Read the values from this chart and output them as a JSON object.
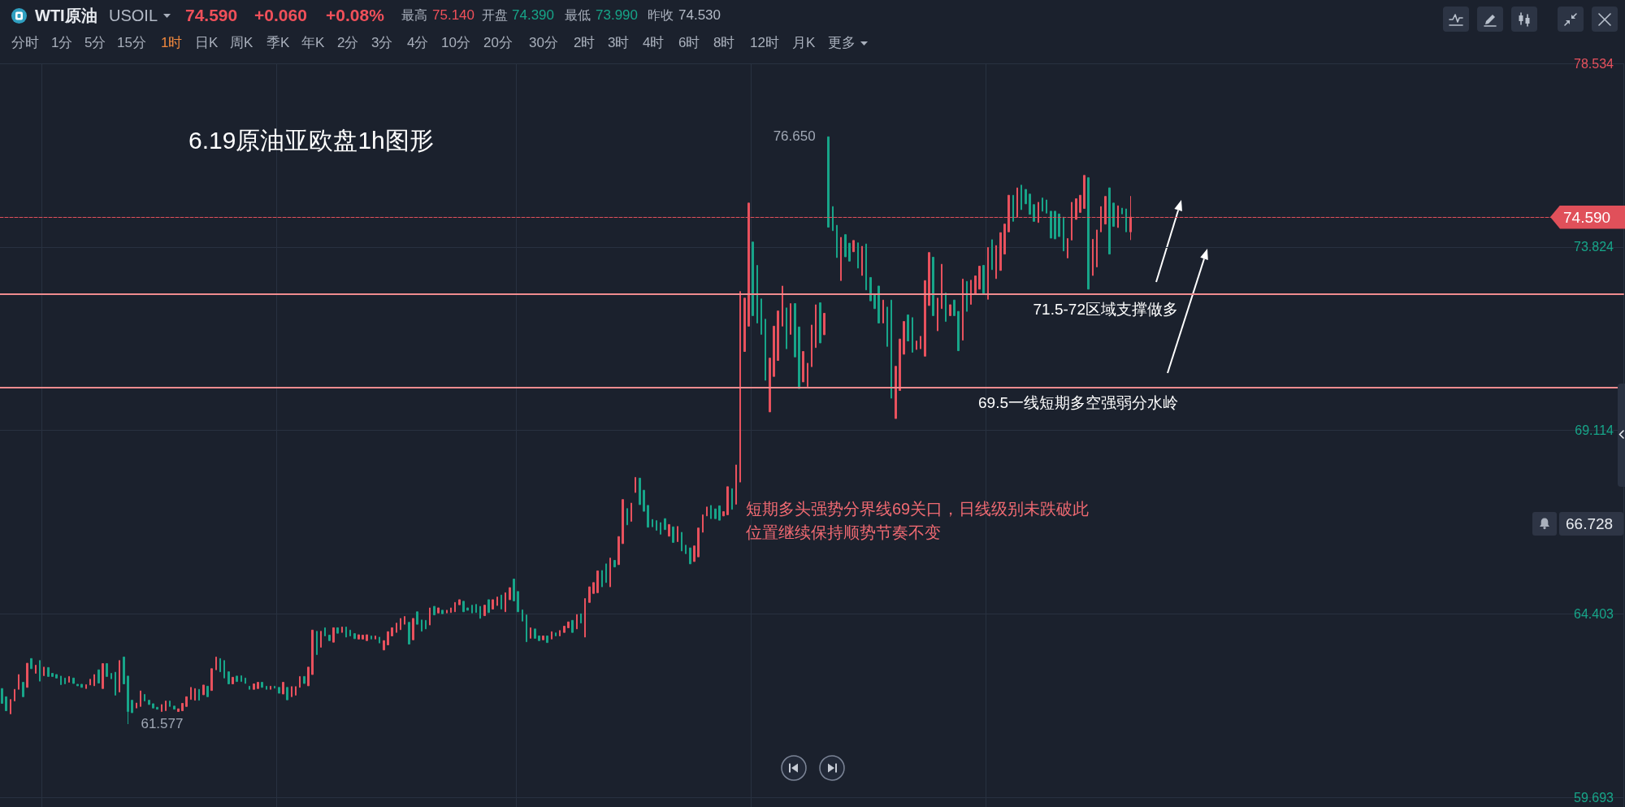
{
  "chart_data": {
    "type": "candlestick",
    "title": "6.19原油亚欧盘1h图形",
    "categories": [
      null,
      null,
      null,
      null,
      null,
      null,
      null,
      null,
      null,
      null,
      null,
      null,
      null,
      null,
      null,
      null,
      null,
      null,
      null,
      null,
      null,
      null,
      null,
      null,
      null,
      null,
      null,
      null,
      null,
      null,
      null,
      null,
      null,
      null,
      null,
      null,
      null,
      null,
      null,
      null,
      null,
      null,
      null,
      null,
      null,
      null,
      null,
      null,
      null,
      null,
      null,
      null,
      null,
      null,
      null,
      null,
      null,
      null,
      null,
      null,
      null,
      null,
      null,
      null,
      null,
      null,
      null,
      null,
      null,
      null,
      null,
      null,
      null,
      null,
      null,
      null,
      null,
      null,
      null,
      null,
      null,
      null,
      null,
      null,
      null,
      null,
      null,
      null,
      null,
      null,
      null,
      null,
      null,
      null,
      null,
      null,
      null,
      null,
      null,
      null,
      null,
      null,
      null,
      null,
      null,
      null,
      null,
      null,
      null,
      null,
      null,
      null,
      null,
      null,
      null,
      null,
      null,
      null,
      null,
      null,
      null,
      null,
      null,
      null,
      null,
      null,
      null,
      null,
      null,
      null,
      null,
      null,
      null,
      null,
      null,
      null,
      null,
      null,
      null,
      null,
      null,
      null,
      null,
      null,
      null,
      null,
      null,
      null,
      null,
      null,
      null,
      null,
      null,
      null,
      null,
      null,
      null,
      null,
      null,
      null,
      null,
      null,
      null,
      null,
      null,
      null,
      null,
      null,
      null,
      null,
      null,
      null,
      null,
      null,
      null,
      null,
      null,
      null,
      null,
      null,
      null,
      null,
      null,
      null,
      null,
      null,
      null,
      null,
      null,
      null,
      null,
      null,
      null,
      null,
      null,
      null,
      null,
      null,
      null,
      null,
      null,
      null,
      null,
      null,
      null,
      null,
      null,
      null,
      null,
      null,
      null,
      null,
      null,
      null,
      null,
      null,
      null,
      null,
      null,
      null,
      null,
      null,
      null,
      null,
      null,
      null,
      null,
      null,
      null,
      null,
      null,
      null,
      null,
      null,
      null,
      null,
      null,
      null,
      null,
      null,
      null,
      null,
      null,
      null,
      null,
      null,
      null,
      null,
      null,
      null,
      null,
      null,
      null,
      null,
      null,
      null,
      null,
      null,
      null,
      null,
      null,
      null,
      null,
      null,
      null,
      null,
      null,
      null,
      null,
      null,
      null,
      null,
      null,
      null,
      null,
      null,
      null,
      null,
      null,
      null,
      null,
      null,
      null,
      null,
      null,
      null,
      null,
      null,
      null,
      null,
      null,
      null,
      null,
      null,
      null,
      null,
      null,
      null,
      null,
      null,
      null,
      null,
      null,
      null,
      null,
      null,
      null,
      null,
      null,
      null,
      null,
      null,
      null,
      null,
      null,
      null,
      null,
      null,
      null,
      null,
      null,
      null,
      null,
      null,
      null,
      null,
      null,
      null,
      null,
      null,
      null,
      null,
      null,
      null,
      null,
      null,
      null,
      null,
      null,
      null,
      null,
      null,
      null,
      null,
      null,
      null,
      null,
      null,
      null,
      null,
      null,
      null,
      null,
      null,
      null,
      null,
      null,
      null,
      null,
      null,
      null,
      null,
      null,
      null,
      null,
      null,
      null,
      null,
      null,
      null,
      null,
      null,
      null,
      null,
      null,
      null,
      null,
      null,
      null,
      null,
      null,
      null,
      null,
      null,
      null,
      null,
      null
    ],
    "ohlc": [
      [
        62.49,
        62.49,
        62.11,
        62.11
      ],
      [
        62.28,
        62.28,
        61.92,
        61.92
      ],
      [
        61.84,
        62.21,
        61.84,
        62.21
      ],
      [
        62.17,
        62.47,
        62.17,
        62.47
      ],
      [
        62.47,
        62.85,
        62.47,
        62.85
      ],
      [
        62.65,
        62.65,
        62.28,
        62.28
      ],
      [
        62.52,
        63.14,
        62.52,
        63.14
      ],
      [
        63.26,
        63.26,
        63.0,
        63.0
      ],
      [
        62.88,
        63.09,
        62.88,
        63.09
      ],
      [
        63.21,
        63.21,
        62.68,
        62.68
      ],
      [
        62.82,
        63.04,
        62.82,
        63.04
      ],
      [
        63.03,
        63.03,
        62.8,
        62.8
      ],
      [
        62.88,
        62.88,
        62.8,
        62.8
      ],
      [
        62.85,
        62.85,
        62.76,
        62.76
      ],
      [
        62.81,
        62.81,
        62.59,
        62.59
      ],
      [
        62.76,
        62.76,
        62.61,
        62.61
      ],
      [
        62.65,
        62.8,
        62.65,
        62.8
      ],
      [
        62.76,
        62.76,
        62.62,
        62.62
      ],
      [
        62.6,
        62.6,
        62.56,
        62.56
      ],
      [
        62.6,
        62.6,
        62.52,
        62.52
      ],
      [
        62.49,
        62.59,
        62.49,
        62.59
      ],
      [
        62.58,
        62.73,
        62.58,
        62.73
      ],
      [
        62.56,
        62.85,
        62.56,
        62.85
      ],
      [
        62.97,
        62.97,
        62.63,
        62.63
      ],
      [
        62.49,
        63.13,
        62.49,
        63.13
      ],
      [
        63.13,
        63.13,
        62.8,
        62.8
      ],
      [
        62.88,
        62.88,
        62.74,
        62.74
      ],
      [
        62.91,
        62.91,
        62.32,
        62.32
      ],
      [
        62.4,
        63.21,
        62.4,
        63.21
      ],
      [
        63.3,
        63.3,
        62.61,
        62.61
      ],
      [
        62.81,
        62.81,
        61.577,
        61.9
      ],
      [
        62.19,
        62.19,
        61.87,
        61.87
      ],
      [
        61.99,
        62.12,
        61.99,
        62.12
      ],
      [
        62.03,
        62.43,
        62.03,
        62.43
      ],
      [
        62.34,
        62.34,
        62.17,
        62.17
      ],
      [
        62.19,
        62.19,
        62.08,
        62.08
      ],
      [
        62.1,
        62.1,
        61.99,
        61.99
      ],
      [
        62.01,
        62.01,
        61.96,
        61.96
      ],
      [
        61.9,
        62.08,
        61.9,
        62.08
      ],
      [
        61.92,
        62.17,
        61.92,
        62.17
      ],
      [
        62.17,
        62.17,
        62.03,
        62.03
      ],
      [
        62.04,
        62.04,
        61.96,
        61.96
      ],
      [
        61.9,
        61.97,
        61.9,
        61.97
      ],
      [
        61.92,
        62.11,
        61.92,
        62.11
      ],
      [
        62.03,
        62.28,
        62.03,
        62.28
      ],
      [
        62.21,
        62.52,
        62.21,
        62.52
      ],
      [
        62.19,
        62.49,
        62.19,
        62.49
      ],
      [
        62.47,
        62.47,
        62.19,
        62.19
      ],
      [
        62.33,
        62.58,
        62.33,
        62.58
      ],
      [
        62.55,
        62.55,
        62.28,
        62.28
      ],
      [
        62.44,
        63.0,
        62.44,
        63.0
      ],
      [
        62.97,
        63.3,
        62.97,
        63.3
      ],
      [
        63.26,
        63.26,
        62.92,
        62.92
      ],
      [
        63.21,
        63.21,
        62.76,
        62.76
      ],
      [
        62.92,
        62.92,
        62.61,
        62.61
      ],
      [
        62.61,
        62.78,
        62.61,
        62.78
      ],
      [
        62.81,
        62.81,
        62.67,
        62.67
      ],
      [
        62.82,
        62.82,
        62.67,
        62.67
      ],
      [
        62.76,
        62.76,
        62.62,
        62.62
      ],
      [
        62.55,
        62.55,
        62.47,
        62.47
      ],
      [
        62.47,
        62.61,
        62.47,
        62.61
      ],
      [
        62.49,
        62.65,
        62.49,
        62.65
      ],
      [
        62.65,
        62.65,
        62.52,
        62.52
      ],
      [
        62.55,
        62.55,
        62.47,
        62.47
      ],
      [
        62.47,
        62.55,
        62.47,
        62.55
      ],
      [
        62.55,
        62.55,
        62.5,
        62.5
      ],
      [
        62.52,
        62.52,
        62.37,
        62.37
      ],
      [
        62.35,
        62.65,
        62.35,
        62.65
      ],
      [
        62.52,
        62.52,
        62.2,
        62.2
      ],
      [
        62.28,
        62.54,
        62.28,
        62.54
      ],
      [
        62.32,
        62.54,
        62.32,
        62.54
      ],
      [
        62.52,
        62.8,
        62.52,
        62.8
      ],
      [
        62.8,
        62.8,
        62.62,
        62.62
      ],
      [
        62.56,
        63.04,
        62.56,
        63.04
      ],
      [
        62.85,
        63.99,
        62.85,
        63.99
      ],
      [
        63.96,
        63.96,
        63.36,
        63.36
      ],
      [
        63.55,
        63.96,
        63.55,
        63.96
      ],
      [
        64.05,
        64.05,
        63.84,
        63.84
      ],
      [
        63.86,
        63.86,
        63.72,
        63.72
      ],
      [
        63.68,
        64.05,
        63.68,
        64.05
      ],
      [
        64.05,
        64.05,
        63.91,
        63.91
      ],
      [
        63.93,
        64.07,
        63.93,
        64.07
      ],
      [
        64.07,
        64.07,
        63.81,
        63.81
      ],
      [
        63.99,
        63.99,
        63.84,
        63.84
      ],
      [
        63.9,
        63.9,
        63.77,
        63.77
      ],
      [
        63.76,
        63.87,
        63.76,
        63.87
      ],
      [
        63.76,
        63.86,
        63.76,
        63.86
      ],
      [
        63.72,
        63.87,
        63.72,
        63.87
      ],
      [
        63.84,
        63.84,
        63.76,
        63.76
      ],
      [
        63.76,
        63.84,
        63.76,
        63.84
      ],
      [
        63.81,
        63.81,
        63.66,
        63.66
      ],
      [
        63.48,
        63.72,
        63.48,
        63.72
      ],
      [
        63.61,
        63.95,
        63.61,
        63.95
      ],
      [
        63.84,
        64.05,
        63.84,
        64.05
      ],
      [
        63.93,
        64.17,
        63.93,
        64.17
      ],
      [
        64.0,
        64.29,
        64.0,
        64.29
      ],
      [
        64.14,
        64.34,
        64.14,
        64.34
      ],
      [
        64.19,
        64.19,
        63.63,
        63.63
      ],
      [
        63.74,
        64.29,
        63.74,
        64.29
      ],
      [
        64.46,
        64.46,
        64.14,
        64.14
      ],
      [
        64.25,
        64.25,
        63.96,
        63.96
      ],
      [
        64.24,
        64.24,
        64.02,
        64.02
      ],
      [
        64.12,
        64.56,
        64.12,
        64.56
      ],
      [
        64.6,
        64.6,
        64.38,
        64.38
      ],
      [
        64.43,
        64.56,
        64.43,
        64.56
      ],
      [
        64.5,
        64.5,
        64.41,
        64.41
      ],
      [
        64.43,
        64.5,
        64.43,
        64.5
      ],
      [
        64.44,
        64.56,
        64.44,
        64.56
      ],
      [
        64.46,
        64.7,
        64.46,
        64.7
      ],
      [
        64.64,
        64.77,
        64.64,
        64.77
      ],
      [
        64.73,
        64.73,
        64.46,
        64.46
      ],
      [
        64.56,
        64.56,
        64.5,
        64.5
      ],
      [
        64.63,
        64.63,
        64.43,
        64.43
      ],
      [
        64.65,
        64.65,
        64.44,
        64.44
      ],
      [
        64.6,
        64.6,
        64.29,
        64.29
      ],
      [
        64.36,
        64.63,
        64.36,
        64.63
      ],
      [
        64.77,
        64.77,
        64.44,
        64.44
      ],
      [
        64.53,
        64.77,
        64.53,
        64.77
      ],
      [
        64.62,
        64.84,
        64.62,
        64.84
      ],
      [
        64.89,
        64.89,
        64.53,
        64.53
      ],
      [
        64.46,
        64.95,
        64.46,
        64.95
      ],
      [
        64.77,
        65.08,
        64.77,
        65.08
      ],
      [
        65.3,
        65.3,
        64.74,
        64.74
      ],
      [
        64.98,
        64.98,
        64.46,
        64.46
      ],
      [
        64.51,
        64.51,
        64.22,
        64.22
      ],
      [
        64.38,
        64.38,
        63.69,
        63.69
      ],
      [
        63.78,
        64.05,
        63.78,
        64.05
      ],
      [
        64.02,
        64.02,
        63.78,
        63.78
      ],
      [
        63.84,
        63.84,
        63.72,
        63.72
      ],
      [
        63.74,
        63.84,
        63.74,
        63.84
      ],
      [
        63.84,
        63.84,
        63.67,
        63.67
      ],
      [
        63.76,
        63.95,
        63.76,
        63.95
      ],
      [
        63.92,
        63.92,
        63.84,
        63.84
      ],
      [
        63.84,
        63.98,
        63.84,
        63.98
      ],
      [
        63.93,
        64.09,
        63.93,
        64.09
      ],
      [
        64.05,
        64.2,
        64.05,
        64.2
      ],
      [
        64.24,
        64.24,
        63.93,
        63.93
      ],
      [
        64.02,
        64.39,
        64.02,
        64.39
      ],
      [
        64.41,
        64.41,
        64.17,
        64.17
      ],
      [
        63.81,
        64.8,
        63.81,
        64.8
      ],
      [
        64.7,
        65.1,
        64.7,
        65.1
      ],
      [
        64.93,
        65.21,
        64.93,
        65.21
      ],
      [
        64.95,
        65.51,
        64.95,
        65.51
      ],
      [
        65.52,
        65.52,
        65.1,
        65.1
      ],
      [
        65.69,
        65.69,
        65.21,
        65.21
      ],
      [
        65.1,
        65.84,
        65.1,
        65.84
      ],
      [
        65.78,
        65.78,
        65.61,
        65.61
      ],
      [
        65.67,
        66.39,
        65.67,
        66.39
      ],
      [
        66.21,
        67.34,
        66.21,
        67.34
      ],
      [
        67.11,
        67.11,
        66.69,
        66.69
      ],
      [
        66.78,
        67.25,
        66.78,
        67.25
      ],
      [
        67.52,
        67.91,
        67.52,
        67.91
      ],
      [
        67.89,
        67.89,
        67.21,
        67.21
      ],
      [
        67.58,
        67.58,
        67.04,
        67.04
      ],
      [
        67.19,
        67.19,
        66.63,
        66.63
      ],
      [
        66.83,
        66.83,
        66.64,
        66.64
      ],
      [
        66.8,
        66.8,
        66.55,
        66.55
      ],
      [
        66.75,
        66.75,
        66.45,
        66.45
      ],
      [
        66.85,
        66.85,
        66.57,
        66.57
      ],
      [
        66.4,
        66.7,
        66.4,
        66.7
      ],
      [
        66.64,
        66.64,
        66.24,
        66.24
      ],
      [
        66.26,
        66.65,
        66.26,
        66.65
      ],
      [
        66.5,
        66.5,
        66.02,
        66.02
      ],
      [
        66.17,
        66.17,
        65.95,
        65.95
      ],
      [
        66.1,
        66.1,
        65.69,
        65.69
      ],
      [
        65.75,
        66.15,
        65.75,
        66.15
      ],
      [
        65.87,
        66.61,
        65.87,
        66.61
      ],
      [
        66.5,
        66.95,
        66.5,
        66.95
      ],
      [
        66.92,
        67.15,
        66.92,
        67.15
      ],
      [
        67.19,
        67.19,
        66.85,
        66.85
      ],
      [
        67.1,
        67.1,
        66.85,
        66.85
      ],
      [
        67.18,
        67.18,
        66.81,
        66.81
      ],
      [
        66.92,
        67.03,
        66.92,
        67.03
      ],
      [
        66.95,
        67.67,
        66.95,
        67.67
      ],
      [
        67.62,
        67.62,
        67.09,
        67.09
      ],
      [
        67.22,
        68.23,
        67.22,
        68.23
      ],
      [
        67.79,
        72.68,
        67.79,
        72.68
      ],
      [
        71.14,
        72.51,
        71.14,
        72.51
      ],
      [
        71.79,
        74.95,
        71.79,
        74.95
      ],
      [
        73.95,
        73.95,
        72.06,
        72.06
      ],
      [
        73.35,
        73.35,
        71.87,
        71.87
      ],
      [
        72.49,
        72.49,
        71.58,
        71.58
      ],
      [
        71.97,
        71.97,
        70.4,
        70.4
      ],
      [
        69.59,
        70.97,
        69.59,
        70.97
      ],
      [
        70.5,
        71.79,
        70.5,
        71.79
      ],
      [
        70.91,
        72.18,
        70.91,
        72.18
      ],
      [
        71.79,
        72.82,
        71.79,
        72.82
      ],
      [
        72.26,
        72.26,
        71.21,
        71.21
      ],
      [
        71.58,
        72.37,
        71.58,
        72.37
      ],
      [
        72.37,
        72.37,
        71.0,
        71.0
      ],
      [
        71.77,
        71.77,
        70.19,
        70.19
      ],
      [
        70.36,
        71.14,
        70.36,
        71.14
      ],
      [
        70.24,
        70.84,
        70.24,
        70.84
      ],
      [
        70.75,
        71.82,
        70.75,
        71.82
      ],
      [
        71.24,
        72.34,
        71.24,
        72.34
      ],
      [
        72.39,
        72.39,
        71.36,
        71.36
      ],
      [
        71.57,
        72.12,
        71.57,
        72.12
      ],
      [
        76.65,
        76.65,
        74.33,
        74.33
      ],
      [
        74.86,
        74.86,
        74.24,
        74.24
      ],
      [
        74.38,
        74.38,
        73.55,
        73.55
      ],
      [
        72.96,
        74.07,
        72.96,
        74.07
      ],
      [
        74.14,
        74.14,
        73.57,
        73.57
      ],
      [
        73.92,
        73.92,
        73.46,
        73.46
      ],
      [
        73.7,
        73.99,
        73.7,
        73.99
      ],
      [
        73.93,
        73.93,
        73.28,
        73.28
      ],
      [
        73.09,
        73.84,
        73.09,
        73.84
      ],
      [
        73.9,
        73.9,
        72.72,
        72.72
      ],
      [
        73.04,
        73.04,
        72.44,
        72.44
      ],
      [
        72.61,
        72.61,
        72.24,
        72.24
      ],
      [
        72.82,
        72.82,
        71.87,
        71.87
      ],
      [
        71.87,
        72.46,
        71.87,
        72.46
      ],
      [
        72.28,
        72.28,
        71.27,
        71.27
      ],
      [
        72.46,
        72.46,
        69.94,
        69.94
      ],
      [
        69.42,
        70.76,
        69.42,
        70.76
      ],
      [
        70.14,
        71.46,
        70.14,
        71.46
      ],
      [
        71.07,
        71.91,
        71.07,
        71.91
      ],
      [
        72.08,
        72.08,
        71.41,
        71.41
      ],
      [
        72.01,
        72.01,
        71.12,
        71.12
      ],
      [
        71.19,
        71.41,
        71.19,
        71.41
      ],
      [
        71.21,
        71.53,
        71.21,
        71.53
      ],
      [
        71.02,
        72.96,
        71.02,
        72.96
      ],
      [
        72.32,
        73.68,
        72.32,
        73.68
      ],
      [
        73.56,
        73.56,
        72.06,
        72.06
      ],
      [
        71.67,
        72.51,
        71.67,
        72.51
      ],
      [
        72.24,
        73.38,
        72.24,
        73.38
      ],
      [
        72.64,
        72.64,
        71.91,
        71.91
      ],
      [
        72.06,
        72.34,
        72.06,
        72.34
      ],
      [
        72.46,
        72.46,
        72.06,
        72.06
      ],
      [
        72.17,
        72.17,
        71.16,
        71.16
      ],
      [
        71.43,
        73.0,
        71.43,
        73.0
      ],
      [
        72.94,
        72.94,
        72.17,
        72.17
      ],
      [
        72.35,
        72.97,
        72.35,
        72.97
      ],
      [
        72.61,
        73.08,
        72.61,
        73.08
      ],
      [
        72.74,
        73.33,
        72.74,
        73.33
      ],
      [
        73.35,
        73.35,
        72.61,
        72.61
      ],
      [
        72.48,
        73.81,
        72.48,
        73.81
      ],
      [
        74.01,
        74.01,
        73.24,
        73.24
      ],
      [
        73.01,
        73.86,
        73.01,
        73.86
      ],
      [
        73.22,
        74.19,
        73.22,
        74.19
      ],
      [
        73.64,
        74.41,
        73.64,
        74.41
      ],
      [
        74.21,
        75.15,
        74.21,
        75.15
      ],
      [
        75.15,
        75.15,
        74.48,
        74.48
      ],
      [
        74.59,
        75.34,
        74.59,
        75.34
      ],
      [
        75.41,
        75.41,
        74.78,
        74.78
      ],
      [
        75.3,
        75.3,
        74.93,
        74.93
      ],
      [
        75.18,
        75.18,
        74.66,
        74.66
      ],
      [
        74.91,
        74.91,
        74.48,
        74.48
      ],
      [
        74.45,
        74.97,
        74.45,
        74.97
      ],
      [
        75.08,
        75.08,
        74.74,
        74.74
      ],
      [
        75.03,
        75.03,
        74.69,
        74.69
      ],
      [
        74.74,
        74.74,
        74.05,
        74.05
      ],
      [
        74.74,
        74.74,
        74.03,
        74.03
      ],
      [
        74.67,
        74.67,
        74.09,
        74.09
      ],
      [
        74.59,
        74.59,
        73.72,
        73.72
      ],
      [
        73.54,
        74.04,
        73.54,
        74.04
      ],
      [
        74.0,
        74.97,
        74.0,
        74.97
      ],
      [
        74.53,
        75.06,
        74.53,
        75.06
      ],
      [
        74.71,
        75.15,
        74.71,
        75.15
      ],
      [
        74.81,
        75.66,
        74.81,
        75.66
      ],
      [
        75.6,
        75.6,
        72.74,
        72.74
      ],
      [
        73.09,
        74.02,
        73.09,
        74.02
      ],
      [
        73.31,
        74.26,
        73.31,
        74.26
      ],
      [
        74.21,
        74.86,
        74.21,
        74.86
      ],
      [
        74.41,
        75.12,
        74.41,
        75.12
      ],
      [
        75.34,
        75.34,
        73.64,
        73.64
      ],
      [
        74.95,
        74.95,
        74.35,
        74.35
      ],
      [
        74.32,
        74.88,
        74.32,
        74.88
      ],
      [
        74.82,
        74.82,
        74.67,
        74.67
      ],
      [
        74.8,
        74.8,
        74.21,
        74.21
      ],
      [
        74.21,
        75.13,
        74.0,
        74.59
      ],
      null,
      null,
      null,
      null,
      null,
      null,
      null,
      null,
      null,
      null,
      null,
      null,
      null,
      null,
      null,
      null,
      null,
      null,
      null,
      null,
      null,
      null,
      null,
      null,
      null,
      null,
      null,
      null,
      null,
      null,
      null,
      null,
      null,
      null,
      null,
      null,
      null,
      null,
      null,
      null,
      null,
      null,
      null,
      null,
      null,
      null,
      null,
      null,
      null,
      null,
      null,
      null,
      null,
      null,
      null,
      null,
      null,
      null,
      null,
      null,
      null,
      null,
      null,
      null,
      null,
      null,
      null,
      null,
      null,
      null,
      null,
      null,
      null,
      null,
      null,
      null,
      null,
      null,
      null,
      null,
      null,
      null,
      null,
      null,
      null,
      null,
      null,
      null,
      null,
      null,
      null,
      null,
      null,
      null,
      null,
      null,
      null,
      null,
      null,
      null,
      null,
      null,
      null,
      null,
      null,
      null,
      null,
      null,
      null,
      null,
      null,
      null,
      null,
      null,
      null,
      null,
      null
    ],
    "colors": [
      "#17a589",
      "#17a589",
      "#e8515d",
      "#e8515d",
      "#e8515d",
      "#17a589",
      "#e8515d",
      "#17a589",
      "#e8515d",
      "#17a589",
      "#e8515d",
      "#17a589",
      "#17a589",
      "#17a589",
      "#17a589",
      "#17a589",
      "#e8515d",
      "#17a589",
      "#17a589",
      "#17a589",
      "#e8515d",
      "#e8515d",
      "#e8515d",
      "#17a589",
      "#e8515d",
      "#17a589",
      "#17a589",
      "#17a589",
      "#e8515d",
      "#17a589",
      "#17a589",
      "#17a589",
      "#e8515d",
      "#e8515d",
      "#17a589",
      "#17a589",
      "#17a589",
      "#17a589",
      "#e8515d",
      "#e8515d",
      "#17a589",
      "#17a589",
      "#e8515d",
      "#e8515d",
      "#e8515d",
      "#e8515d",
      "#e8515d",
      "#17a589",
      "#e8515d",
      "#17a589",
      "#e8515d",
      "#e8515d",
      "#17a589",
      "#17a589",
      "#17a589",
      "#e8515d",
      "#17a589",
      "#17a589",
      "#17a589",
      "#17a589",
      "#e8515d",
      "#e8515d",
      "#17a589",
      "#17a589",
      "#e8515d",
      "#17a589",
      "#17a589",
      "#e8515d",
      "#17a589",
      "#e8515d",
      "#e8515d",
      "#e8515d",
      "#17a589",
      "#e8515d",
      "#e8515d",
      "#17a589",
      "#e8515d",
      "#17a589",
      "#17a589",
      "#e8515d",
      "#17a589",
      "#e8515d",
      "#17a589",
      "#17a589",
      "#17a589",
      "#e8515d",
      "#e8515d",
      "#e8515d",
      "#17a589",
      "#e8515d",
      "#17a589",
      "#e8515d",
      "#e8515d",
      "#e8515d",
      "#e8515d",
      "#e8515d",
      "#e8515d",
      "#17a589",
      "#e8515d",
      "#17a589",
      "#17a589",
      "#17a589",
      "#e8515d",
      "#17a589",
      "#e8515d",
      "#17a589",
      "#e8515d",
      "#e8515d",
      "#e8515d",
      "#e8515d",
      "#17a589",
      "#17a589",
      "#17a589",
      "#17a589",
      "#17a589",
      "#e8515d",
      "#17a589",
      "#e8515d",
      "#e8515d",
      "#17a589",
      "#e8515d",
      "#e8515d",
      "#17a589",
      "#17a589",
      "#17a589",
      "#17a589",
      "#e8515d",
      "#17a589",
      "#17a589",
      "#e8515d",
      "#17a589",
      "#e8515d",
      "#17a589",
      "#e8515d",
      "#e8515d",
      "#e8515d",
      "#17a589",
      "#e8515d",
      "#17a589",
      "#e8515d",
      "#e8515d",
      "#e8515d",
      "#e8515d",
      "#17a589",
      "#17a589",
      "#e8515d",
      "#17a589",
      "#e8515d",
      "#e8515d",
      "#17a589",
      "#e8515d",
      "#e8515d",
      "#17a589",
      "#17a589",
      "#17a589",
      "#17a589",
      "#17a589",
      "#17a589",
      "#17a589",
      "#e8515d",
      "#17a589",
      "#e8515d",
      "#17a589",
      "#17a589",
      "#17a589",
      "#e8515d",
      "#e8515d",
      "#e8515d",
      "#e8515d",
      "#17a589",
      "#17a589",
      "#17a589",
      "#e8515d",
      "#e8515d",
      "#17a589",
      "#e8515d",
      "#e8515d",
      "#e8515d",
      "#e8515d",
      "#17a589",
      "#17a589",
      "#17a589",
      "#17a589",
      "#e8515d",
      "#e8515d",
      "#e8515d",
      "#e8515d",
      "#17a589",
      "#e8515d",
      "#17a589",
      "#17a589",
      "#e8515d",
      "#e8515d",
      "#e8515d",
      "#e8515d",
      "#17a589",
      "#e8515d",
      "#17a589",
      "#17a589",
      "#17a589",
      "#e8515d",
      "#17a589",
      "#17a589",
      "#e8515d",
      "#17a589",
      "#e8515d",
      "#17a589",
      "#17a589",
      "#17a589",
      "#17a589",
      "#e8515d",
      "#17a589",
      "#17a589",
      "#e8515d",
      "#e8515d",
      "#e8515d",
      "#17a589",
      "#17a589",
      "#e8515d",
      "#e8515d",
      "#e8515d",
      "#e8515d",
      "#17a589",
      "#e8515d",
      "#e8515d",
      "#17a589",
      "#e8515d",
      "#17a589",
      "#17a589",
      "#e8515d",
      "#17a589",
      "#e8515d",
      "#e8515d",
      "#e8515d",
      "#17a589",
      "#e8515d",
      "#17a589",
      "#e8515d",
      "#e8515d",
      "#e8515d",
      "#e8515d",
      "#17a589",
      "#e8515d",
      "#17a589",
      "#17a589",
      "#17a589",
      "#17a589",
      "#e8515d",
      "#17a589",
      "#17a589",
      "#17a589",
      "#17a589",
      "#17a589",
      "#17a589",
      "#e8515d",
      "#e8515d",
      "#e8515d",
      "#e8515d",
      "#e8515d",
      "#17a589",
      "#e8515d",
      "#e8515d",
      "#e8515d",
      "#e8515d",
      "#17a589",
      "#17a589",
      "#e8515d",
      "#17a589",
      "#17a589",
      "#e8515d",
      null,
      null,
      null,
      null,
      null,
      null,
      null,
      null,
      null,
      null,
      null,
      null,
      null,
      null,
      null,
      null,
      null,
      null,
      null,
      null,
      null,
      null,
      null,
      null,
      null,
      null,
      null,
      null,
      null,
      null,
      null,
      null,
      null,
      null,
      null,
      null,
      null,
      null,
      null,
      null,
      null,
      null,
      null,
      null,
      null,
      null,
      null,
      null,
      null,
      null,
      null,
      null,
      null,
      null,
      null,
      null,
      null,
      null,
      null,
      null,
      null,
      null,
      null,
      null,
      null,
      null,
      null,
      null,
      null,
      null,
      null,
      null,
      null,
      null,
      null,
      null,
      null,
      null,
      null,
      null,
      null,
      null,
      null,
      null,
      null,
      null,
      null,
      null,
      null,
      null,
      null,
      null,
      null,
      null,
      null,
      null,
      null,
      null,
      null,
      null,
      null,
      null,
      null,
      null,
      null,
      null,
      null,
      null,
      null,
      null,
      null,
      null,
      null,
      null,
      null,
      null,
      null
    ],
    "ylim": [
      59.45,
      78.534
    ],
    "yticks": [
      59.693,
      64.403,
      69.114,
      73.824,
      78.534
    ],
    "grid": true,
    "tick_labels": "y",
    "ref_lines": [
      {
        "axis": "y",
        "value": 74.59,
        "label": "74.590",
        "color": "#e0505a",
        "line_style": "dashed"
      },
      {
        "axis": "y",
        "value": 72.61,
        "label": "71.5-72区域支撑做多",
        "color": "#f08c8f"
      },
      {
        "axis": "y",
        "value": 70.21,
        "label": "69.5一线短期多空强弱分水岭",
        "color": "#f08c8f"
      }
    ],
    "annotations": [
      "WTI原油",
      "USOIL",
      "74.590",
      "+0.060",
      "+0.08%",
      "最高",
      "75.140",
      "开盘",
      "74.390",
      "最低",
      "73.990",
      "昨收",
      "74.530",
      "分时",
      "1分",
      "5分",
      "15分",
      "1时",
      "日K",
      "周K",
      "季K",
      "年K",
      "2分",
      "3分",
      "4分",
      "10分",
      "20分",
      "30分",
      "2时",
      "3时",
      "4时",
      "6时",
      "8时",
      "12时",
      "月K",
      "更多",
      "短期多头强势分界线69关口，日线级别未跌破此位置继续保持顺势节奏不变",
      "76.650",
      "61.577",
      "66.728"
    ]
  }
}
